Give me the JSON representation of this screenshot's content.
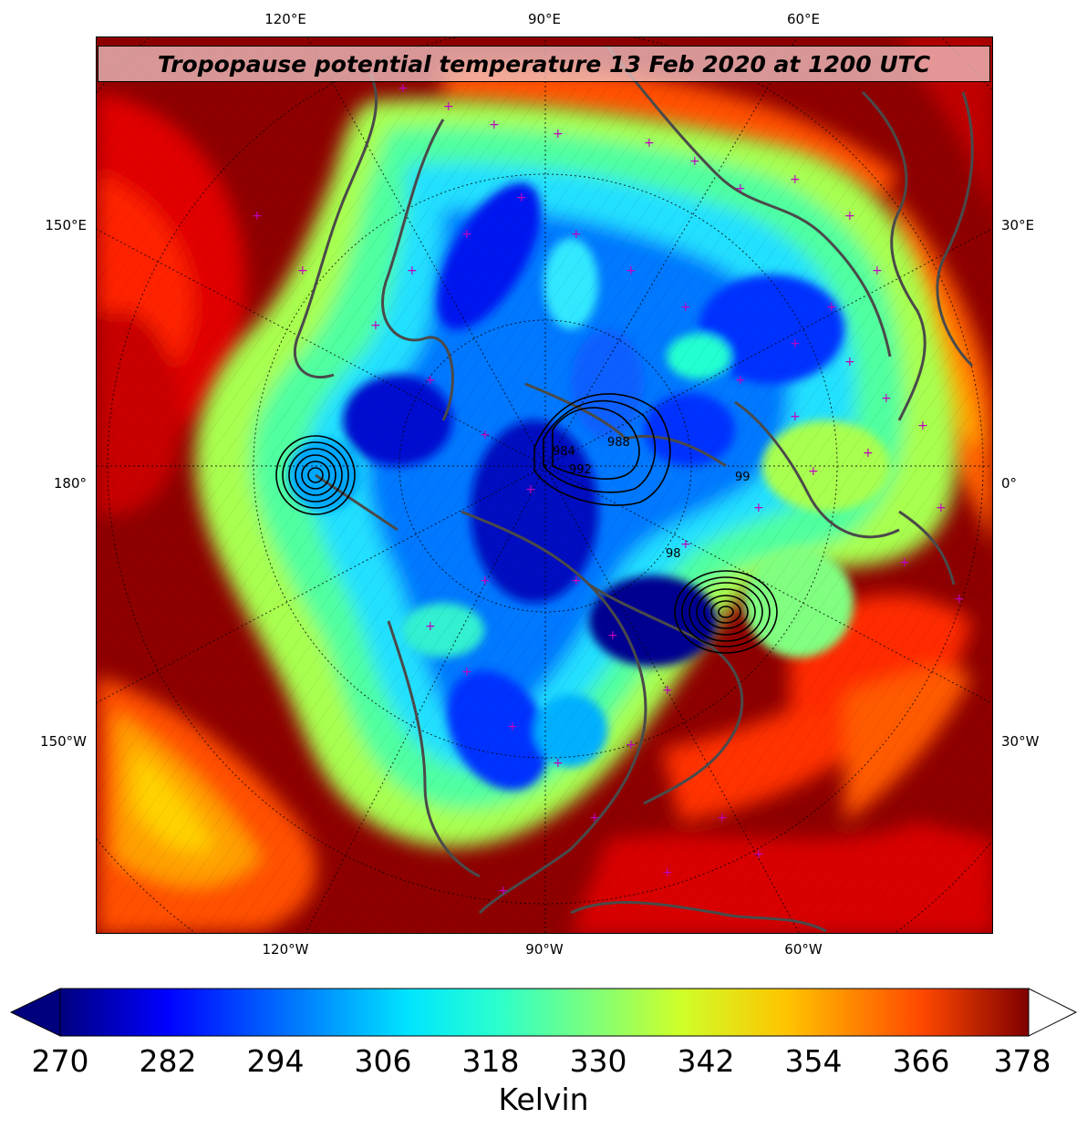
{
  "title": "Tropopause potential temperature 13 Feb 2020 at 1200 UTC",
  "axes": {
    "top_ticks": [
      "120°E",
      "90°E",
      "60°E"
    ],
    "bottom_ticks": [
      "120°W",
      "90°W",
      "60°W"
    ],
    "left_ticks": [
      "150°E",
      "180°",
      "150°W"
    ],
    "right_ticks": [
      "30°E",
      "0°",
      "30°W"
    ]
  },
  "contour_labels": [
    "984",
    "988",
    "992",
    "99",
    "98"
  ],
  "colorbar": {
    "label": "Kelvin",
    "min": 270,
    "max": 378,
    "ticks": [
      "270",
      "282",
      "294",
      "306",
      "318",
      "330",
      "342",
      "354",
      "366",
      "378"
    ],
    "extend": "both",
    "colormap": "jet",
    "colors": [
      "#00007f",
      "#0000ff",
      "#007fff",
      "#00e5ff",
      "#29ffce",
      "#7dff7a",
      "#ceff29",
      "#ffc400",
      "#ff4800",
      "#7f0000"
    ]
  },
  "map": {
    "projection": "north polar stereographic",
    "variable": "tropopause potential temperature",
    "outer_color": "#9a0000",
    "coastline_color": "#4a4a4a",
    "marker_color": "#c000c0"
  }
}
